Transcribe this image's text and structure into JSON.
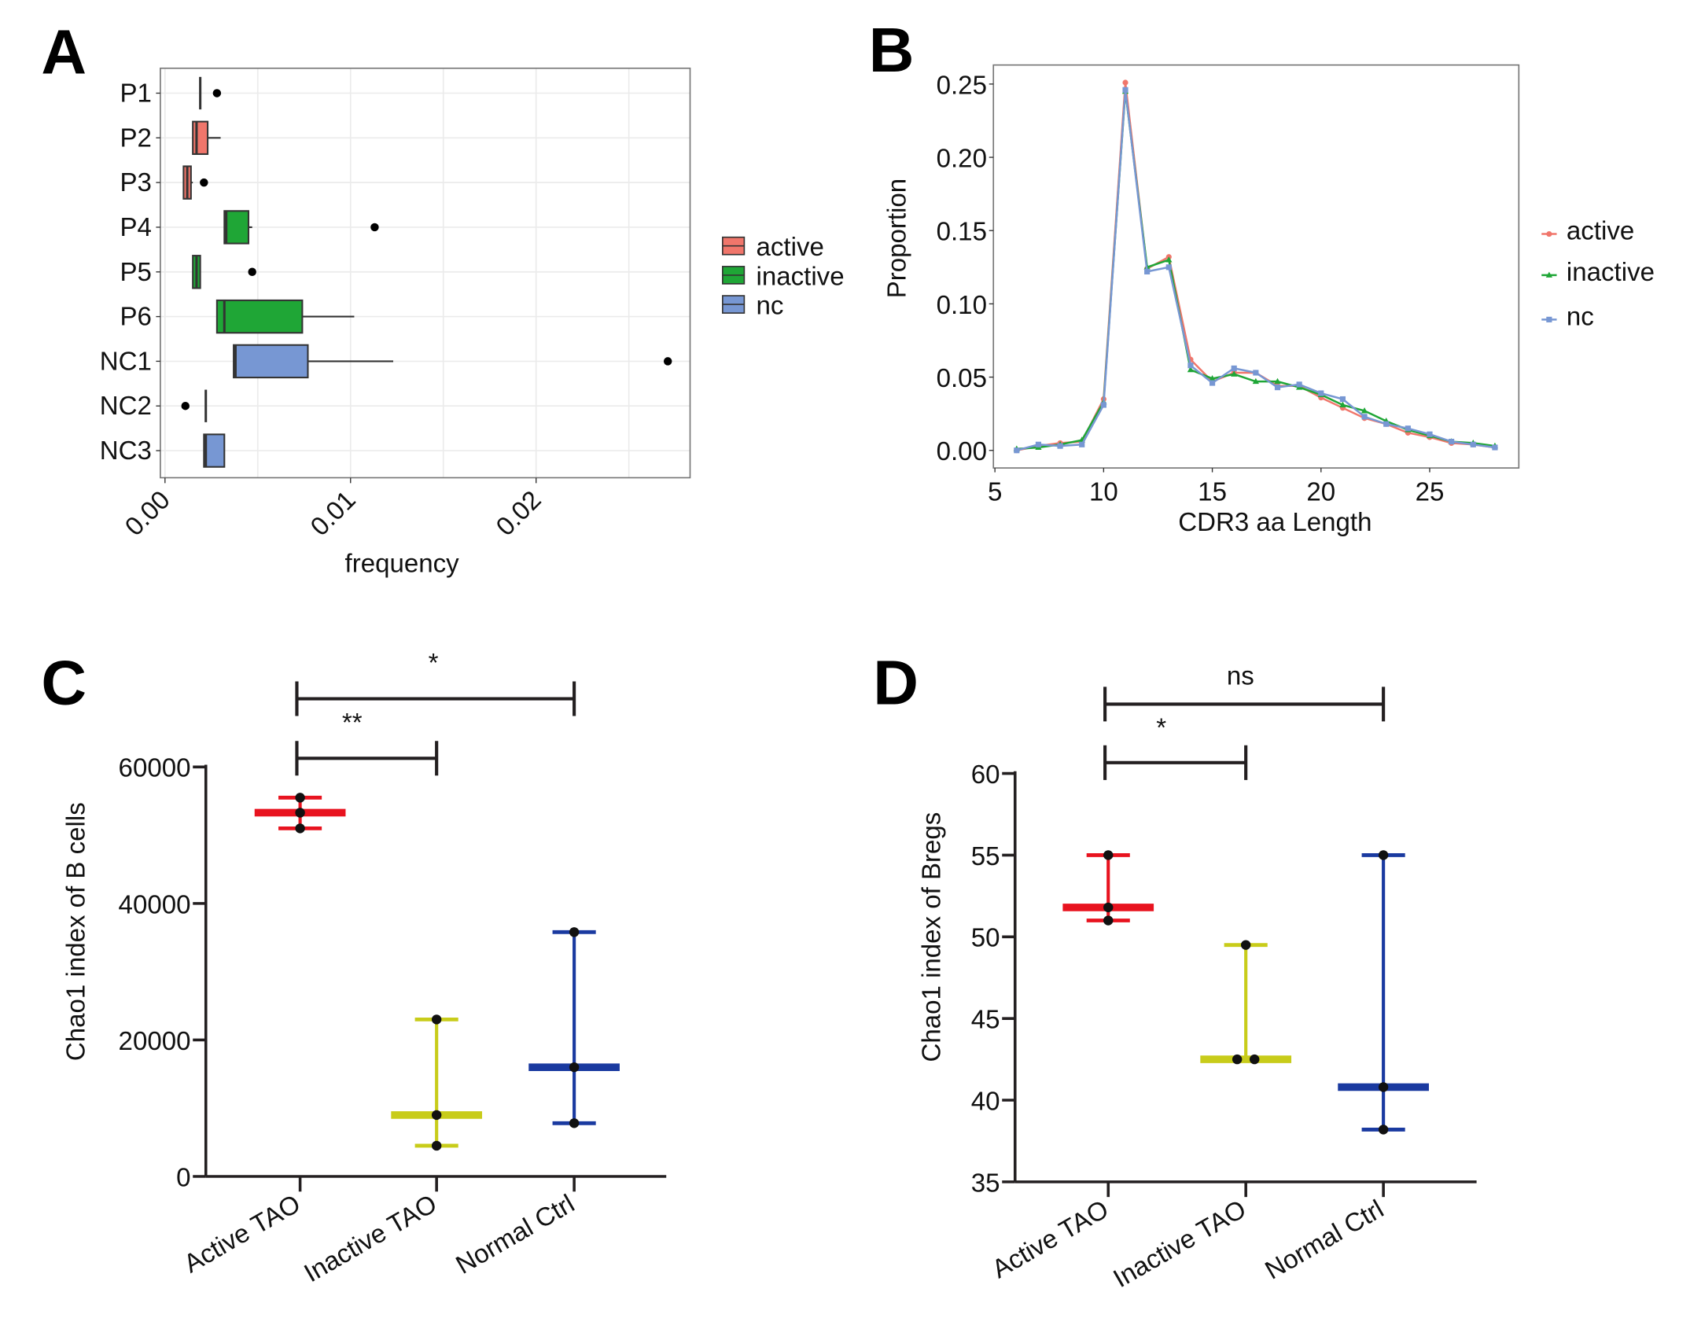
{
  "panels": {
    "a": "A",
    "b": "B",
    "c": "C",
    "d": "D"
  },
  "chart_data": [
    {
      "panel": "A",
      "type": "boxplot",
      "orientation": "horizontal",
      "xlabel": "frequency",
      "ylabel": "",
      "xlim": [
        -0.00025,
        0.0283
      ],
      "xticks": [
        "0.00",
        "0.01",
        "0.02"
      ],
      "xtick_values": [
        0,
        0.01,
        0.02
      ],
      "grid": true,
      "legend": {
        "placement": "right",
        "entries": [
          "active",
          "inactive",
          "nc"
        ]
      },
      "colors": {
        "active": "#f0766b",
        "inactive": "#1fa636",
        "nc": "#7797d3"
      },
      "categories": [
        "P1",
        "P2",
        "P3",
        "P4",
        "P5",
        "P6",
        "NC1",
        "NC2",
        "NC3"
      ],
      "boxes": [
        {
          "label": "P1",
          "group": "active",
          "whisker_low": 0.0019,
          "q1": 0.0019,
          "median": 0.0019,
          "q3": 0.0019,
          "whisker_high": 0.0019,
          "outliers": [
            0.0028
          ]
        },
        {
          "label": "P2",
          "group": "active",
          "whisker_low": 0.0015,
          "q1": 0.0015,
          "median": 0.0017,
          "q3": 0.0023,
          "whisker_high": 0.003,
          "outliers": []
        },
        {
          "label": "P3",
          "group": "active",
          "whisker_low": 0.001,
          "q1": 0.001,
          "median": 0.0012,
          "q3": 0.0014,
          "whisker_high": 0.0015,
          "outliers": [
            0.0021
          ]
        },
        {
          "label": "P4",
          "group": "inactive",
          "whisker_low": 0.0032,
          "q1": 0.0032,
          "median": 0.0033,
          "q3": 0.0045,
          "whisker_high": 0.0047,
          "outliers": [
            0.0113
          ]
        },
        {
          "label": "P5",
          "group": "inactive",
          "whisker_low": 0.0015,
          "q1": 0.0015,
          "median": 0.0017,
          "q3": 0.0019,
          "whisker_high": 0.0019,
          "outliers": [
            0.0047
          ]
        },
        {
          "label": "P6",
          "group": "inactive",
          "whisker_low": 0.0028,
          "q1": 0.0028,
          "median": 0.0032,
          "q3": 0.0074,
          "whisker_high": 0.0102,
          "outliers": []
        },
        {
          "label": "NC1",
          "group": "nc",
          "whisker_low": 0.0037,
          "q1": 0.0037,
          "median": 0.0038,
          "q3": 0.0077,
          "whisker_high": 0.0123,
          "outliers": [
            0.0271
          ]
        },
        {
          "label": "NC2",
          "group": "nc",
          "whisker_low": 0.0022,
          "q1": 0.0022,
          "median": 0.0022,
          "q3": 0.0022,
          "whisker_high": 0.0022,
          "outliers": [
            0.0011
          ]
        },
        {
          "label": "NC3",
          "group": "nc",
          "whisker_low": 0.0021,
          "q1": 0.0021,
          "median": 0.0022,
          "q3": 0.0032,
          "whisker_high": 0.0032,
          "outliers": []
        }
      ]
    },
    {
      "panel": "B",
      "type": "line",
      "xlabel": "CDR3 aa Length",
      "ylabel": "Proportion",
      "xlim": [
        4.93,
        29.1
      ],
      "ylim": [
        -0.012,
        0.263
      ],
      "xticks": [
        "5",
        "10",
        "15",
        "20",
        "25"
      ],
      "xtick_values": [
        5,
        10,
        15,
        20,
        25
      ],
      "yticks": [
        "0.00",
        "0.05",
        "0.10",
        "0.15",
        "0.20",
        "0.25"
      ],
      "ytick_values": [
        0,
        0.05,
        0.1,
        0.15,
        0.2,
        0.25
      ],
      "grid": false,
      "legend": {
        "placement": "right"
      },
      "x": [
        6,
        7,
        8,
        9,
        10,
        11,
        12,
        13,
        14,
        15,
        16,
        17,
        18,
        19,
        20,
        21,
        22,
        23,
        24,
        25,
        26,
        27,
        28
      ],
      "series": [
        {
          "name": "active",
          "color": "#f0766b",
          "marker": "circle",
          "values": [
            0,
            0.003,
            0.005,
            0.006,
            0.035,
            0.251,
            0.124,
            0.132,
            0.062,
            0.047,
            0.053,
            0.053,
            0.044,
            0.044,
            0.036,
            0.029,
            0.022,
            0.018,
            0.012,
            0.009,
            0.005,
            0.004,
            0.002
          ]
        },
        {
          "name": "inactive",
          "color": "#1fa636",
          "marker": "triangle",
          "values": [
            0.001,
            0.002,
            0.004,
            0.007,
            0.033,
            0.245,
            0.125,
            0.13,
            0.055,
            0.049,
            0.052,
            0.047,
            0.047,
            0.043,
            0.038,
            0.031,
            0.027,
            0.02,
            0.014,
            0.01,
            0.006,
            0.005,
            0.003
          ]
        },
        {
          "name": "nc",
          "color": "#7797d3",
          "marker": "square",
          "values": [
            0,
            0.004,
            0.003,
            0.004,
            0.031,
            0.246,
            0.122,
            0.125,
            0.058,
            0.046,
            0.056,
            0.053,
            0.043,
            0.045,
            0.039,
            0.035,
            0.023,
            0.018,
            0.015,
            0.011,
            0.006,
            0.004,
            0.002
          ]
        }
      ]
    },
    {
      "panel": "C",
      "type": "scatter",
      "ylabel": "Chao1  index of B cells",
      "ylim": [
        0,
        60000
      ],
      "yticks": [
        "0",
        "20000",
        "40000",
        "60000"
      ],
      "ytick_values": [
        0,
        20000,
        40000,
        60000
      ],
      "categories": [
        "Active TAO",
        "Inactive TAO",
        "Normal Ctrl"
      ],
      "groups": [
        {
          "name": "Active TAO",
          "color": "#e8131f",
          "points": [
            55500,
            53300,
            51000
          ],
          "center": 53300,
          "low": 51000,
          "high": 55500
        },
        {
          "name": "Inactive TAO",
          "color": "#c8cc1a",
          "points": [
            23000,
            9000,
            4500
          ],
          "center": 9000,
          "low": 4500,
          "high": 23000
        },
        {
          "name": "Normal Ctrl",
          "color": "#1a3aa0",
          "points": [
            35800,
            16000,
            7800
          ],
          "center": 16000,
          "low": 7800,
          "high": 35800
        }
      ],
      "significance": [
        {
          "from": "Active TAO",
          "to": "Inactive TAO",
          "label": "**"
        },
        {
          "from": "Active TAO",
          "to": "Normal Ctrl",
          "label": "*"
        }
      ]
    },
    {
      "panel": "D",
      "type": "scatter",
      "ylabel": "Chao1  index of Bregs",
      "ylim": [
        35,
        60
      ],
      "yticks": [
        "35",
        "40",
        "45",
        "50",
        "55",
        "60"
      ],
      "ytick_values": [
        35,
        40,
        45,
        50,
        55,
        60
      ],
      "categories": [
        "Active TAO",
        "Inactive TAO",
        "Normal Ctrl"
      ],
      "groups": [
        {
          "name": "Active TAO",
          "color": "#e8131f",
          "points": [
            55,
            51.8,
            51
          ],
          "center": 51.8,
          "low": 51,
          "high": 55
        },
        {
          "name": "Inactive TAO",
          "color": "#c8cc1a",
          "points": [
            49.5,
            42.5,
            42.5
          ],
          "center": 42.5,
          "low": 42.5,
          "high": 49.5
        },
        {
          "name": "Normal Ctrl",
          "color": "#1a3aa0",
          "points": [
            55,
            40.8,
            38.2
          ],
          "center": 40.8,
          "low": 38.2,
          "high": 55
        }
      ],
      "significance": [
        {
          "from": "Active TAO",
          "to": "Inactive TAO",
          "label": "*"
        },
        {
          "from": "Active TAO",
          "to": "Normal Ctrl",
          "label": "ns"
        }
      ]
    }
  ]
}
